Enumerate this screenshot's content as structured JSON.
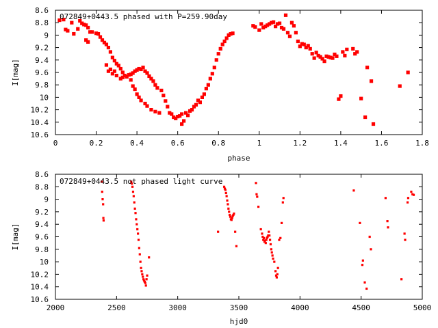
{
  "chart_data": [
    {
      "type": "scatter",
      "title": "072849+0443.5 phased with P=259.90day",
      "xlabel": "phase",
      "ylabel": "I[mag]",
      "xlim": [
        0,
        1.8
      ],
      "ylim": [
        10.6,
        8.6
      ],
      "y_inverted": true,
      "xticks": [
        "0",
        "0.2",
        "0.4",
        "0.6",
        "0.8",
        "1",
        "1.2",
        "1.4",
        "1.6",
        "1.8"
      ],
      "yticks": [
        "8.6",
        "8.8",
        "9",
        "9.2",
        "9.4",
        "9.6",
        "9.8",
        "10",
        "10.2",
        "10.4",
        "10.6"
      ],
      "series_color": "#ff0000",
      "grid": false,
      "points": [
        [
          0.02,
          8.76
        ],
        [
          0.04,
          8.75
        ],
        [
          0.05,
          8.91
        ],
        [
          0.06,
          8.93
        ],
        [
          0.08,
          8.8
        ],
        [
          0.09,
          8.98
        ],
        [
          0.11,
          8.9
        ],
        [
          0.12,
          8.77
        ],
        [
          0.13,
          8.81
        ],
        [
          0.14,
          8.83
        ],
        [
          0.15,
          8.84
        ],
        [
          0.15,
          9.08
        ],
        [
          0.16,
          8.88
        ],
        [
          0.16,
          9.11
        ],
        [
          0.17,
          8.95
        ],
        [
          0.18,
          8.95
        ],
        [
          0.2,
          8.97
        ],
        [
          0.21,
          8.98
        ],
        [
          0.22,
          9.03
        ],
        [
          0.23,
          9.08
        ],
        [
          0.24,
          9.12
        ],
        [
          0.25,
          9.15
        ],
        [
          0.25,
          9.48
        ],
        [
          0.26,
          9.2
        ],
        [
          0.26,
          9.58
        ],
        [
          0.27,
          9.27
        ],
        [
          0.27,
          9.55
        ],
        [
          0.28,
          9.36
        ],
        [
          0.28,
          9.62
        ],
        [
          0.29,
          9.41
        ],
        [
          0.29,
          9.58
        ],
        [
          0.3,
          9.46
        ],
        [
          0.3,
          9.65
        ],
        [
          0.31,
          9.49
        ],
        [
          0.32,
          9.54
        ],
        [
          0.32,
          9.7
        ],
        [
          0.33,
          9.6
        ],
        [
          0.33,
          9.68
        ],
        [
          0.34,
          9.65
        ],
        [
          0.35,
          9.67
        ],
        [
          0.36,
          9.64
        ],
        [
          0.37,
          9.63
        ],
        [
          0.37,
          9.72
        ],
        [
          0.38,
          9.61
        ],
        [
          0.38,
          9.82
        ],
        [
          0.39,
          9.58
        ],
        [
          0.39,
          9.87
        ],
        [
          0.4,
          9.56
        ],
        [
          0.4,
          9.95
        ],
        [
          0.41,
          9.54
        ],
        [
          0.41,
          10.0
        ],
        [
          0.42,
          9.55
        ],
        [
          0.42,
          10.05
        ],
        [
          0.43,
          9.52
        ],
        [
          0.44,
          9.58
        ],
        [
          0.44,
          10.1
        ],
        [
          0.45,
          9.61
        ],
        [
          0.45,
          10.14
        ],
        [
          0.46,
          9.66
        ],
        [
          0.47,
          9.7
        ],
        [
          0.47,
          10.2
        ],
        [
          0.48,
          9.74
        ],
        [
          0.49,
          9.8
        ],
        [
          0.49,
          10.23
        ],
        [
          0.5,
          9.85
        ],
        [
          0.51,
          10.25
        ],
        [
          0.52,
          9.89
        ],
        [
          0.53,
          9.97
        ],
        [
          0.54,
          10.06
        ],
        [
          0.55,
          10.15
        ],
        [
          0.56,
          10.25
        ],
        [
          0.57,
          10.27
        ],
        [
          0.58,
          10.32
        ],
        [
          0.59,
          10.34
        ],
        [
          0.6,
          10.31
        ],
        [
          0.61,
          10.3
        ],
        [
          0.62,
          10.43
        ],
        [
          0.62,
          10.27
        ],
        [
          0.63,
          10.38
        ],
        [
          0.64,
          10.25
        ],
        [
          0.65,
          10.29
        ],
        [
          0.66,
          10.22
        ],
        [
          0.67,
          10.2
        ],
        [
          0.68,
          10.15
        ],
        [
          0.69,
          10.12
        ],
        [
          0.7,
          10.05
        ],
        [
          0.71,
          10.08
        ],
        [
          0.72,
          10.0
        ],
        [
          0.73,
          9.95
        ],
        [
          0.74,
          9.86
        ],
        [
          0.75,
          9.8
        ],
        [
          0.76,
          9.7
        ],
        [
          0.77,
          9.62
        ],
        [
          0.78,
          9.52
        ],
        [
          0.79,
          9.4
        ],
        [
          0.8,
          9.3
        ],
        [
          0.81,
          9.22
        ],
        [
          0.82,
          9.15
        ],
        [
          0.83,
          9.1
        ],
        [
          0.84,
          9.05
        ],
        [
          0.85,
          9.0
        ],
        [
          0.86,
          8.98
        ],
        [
          0.87,
          8.97
        ],
        [
          0.97,
          8.85
        ],
        [
          0.98,
          8.87
        ],
        [
          1.0,
          8.92
        ],
        [
          1.01,
          8.82
        ],
        [
          1.02,
          8.88
        ],
        [
          1.03,
          8.86
        ],
        [
          1.04,
          8.84
        ],
        [
          1.05,
          8.82
        ],
        [
          1.06,
          8.8
        ],
        [
          1.07,
          8.79
        ],
        [
          1.08,
          8.86
        ],
        [
          1.09,
          8.82
        ],
        [
          1.1,
          8.81
        ],
        [
          1.11,
          8.88
        ],
        [
          1.12,
          8.9
        ],
        [
          1.13,
          8.68
        ],
        [
          1.14,
          8.96
        ],
        [
          1.15,
          9.02
        ],
        [
          1.16,
          8.8
        ],
        [
          1.17,
          8.85
        ],
        [
          1.18,
          8.96
        ],
        [
          1.19,
          9.1
        ],
        [
          1.2,
          9.18
        ],
        [
          1.21,
          9.14
        ],
        [
          1.22,
          9.15
        ],
        [
          1.23,
          9.2
        ],
        [
          1.24,
          9.17
        ],
        [
          1.25,
          9.22
        ],
        [
          1.26,
          9.3
        ],
        [
          1.27,
          9.37
        ],
        [
          1.28,
          9.28
        ],
        [
          1.29,
          9.33
        ],
        [
          1.3,
          9.35
        ],
        [
          1.31,
          9.38
        ],
        [
          1.32,
          9.42
        ],
        [
          1.33,
          9.34
        ],
        [
          1.34,
          9.35
        ],
        [
          1.35,
          9.36
        ],
        [
          1.36,
          9.37
        ],
        [
          1.37,
          9.31
        ],
        [
          1.38,
          9.34
        ],
        [
          1.39,
          10.03
        ],
        [
          1.4,
          9.98
        ],
        [
          1.41,
          9.27
        ],
        [
          1.42,
          9.33
        ],
        [
          1.43,
          9.23
        ],
        [
          1.46,
          9.22
        ],
        [
          1.47,
          9.3
        ],
        [
          1.48,
          9.27
        ],
        [
          1.5,
          10.02
        ],
        [
          1.52,
          10.32
        ],
        [
          1.53,
          9.52
        ],
        [
          1.55,
          9.74
        ],
        [
          1.56,
          10.43
        ],
        [
          1.69,
          9.82
        ],
        [
          1.73,
          9.6
        ]
      ]
    },
    {
      "type": "scatter",
      "title": "072849+0443.5 not phased light curve",
      "xlabel": "hjd0",
      "ylabel": "I[mag]",
      "xlim": [
        2000,
        5000
      ],
      "ylim": [
        10.6,
        8.6
      ],
      "y_inverted": true,
      "xticks": [
        "2000",
        "2500",
        "3000",
        "3500",
        "4000",
        "4500",
        "5000"
      ],
      "yticks": [
        "8.6",
        "8.8",
        "9",
        "9.2",
        "9.4",
        "9.6",
        "9.8",
        "10",
        "10.2",
        "10.4",
        "10.6"
      ],
      "series_color": "#ff0000",
      "grid": false,
      "points": [
        [
          2378,
          8.72
        ],
        [
          2382,
          8.88
        ],
        [
          2386,
          9.0
        ],
        [
          2390,
          9.08
        ],
        [
          2392,
          9.3
        ],
        [
          2394,
          9.34
        ],
        [
          2620,
          8.72
        ],
        [
          2625,
          8.75
        ],
        [
          2630,
          8.8
        ],
        [
          2635,
          8.88
        ],
        [
          2640,
          8.95
        ],
        [
          2645,
          9.05
        ],
        [
          2650,
          9.15
        ],
        [
          2655,
          9.22
        ],
        [
          2660,
          9.32
        ],
        [
          2665,
          9.4
        ],
        [
          2670,
          9.48
        ],
        [
          2675,
          9.55
        ],
        [
          2680,
          9.65
        ],
        [
          2685,
          9.78
        ],
        [
          2690,
          9.88
        ],
        [
          2695,
          10.0
        ],
        [
          2700,
          10.1
        ],
        [
          2705,
          10.15
        ],
        [
          2710,
          10.2
        ],
        [
          2715,
          10.24
        ],
        [
          2720,
          10.28
        ],
        [
          2725,
          10.3
        ],
        [
          2730,
          10.32
        ],
        [
          2735,
          10.34
        ],
        [
          2740,
          10.38
        ],
        [
          2745,
          10.28
        ],
        [
          2750,
          10.22
        ],
        [
          2765,
          9.93
        ],
        [
          3330,
          9.52
        ],
        [
          3380,
          8.8
        ],
        [
          3385,
          8.83
        ],
        [
          3390,
          8.85
        ],
        [
          3395,
          8.9
        ],
        [
          3400,
          8.95
        ],
        [
          3405,
          9.02
        ],
        [
          3410,
          9.08
        ],
        [
          3415,
          9.15
        ],
        [
          3420,
          9.2
        ],
        [
          3425,
          9.25
        ],
        [
          3430,
          9.28
        ],
        [
          3435,
          9.32
        ],
        [
          3440,
          9.33
        ],
        [
          3445,
          9.3
        ],
        [
          3450,
          9.27
        ],
        [
          3455,
          9.25
        ],
        [
          3460,
          9.23
        ],
        [
          3470,
          9.52
        ],
        [
          3480,
          9.75
        ],
        [
          3640,
          8.74
        ],
        [
          3645,
          8.92
        ],
        [
          3650,
          8.96
        ],
        [
          3660,
          9.12
        ],
        [
          3680,
          9.48
        ],
        [
          3690,
          9.55
        ],
        [
          3695,
          9.6
        ],
        [
          3700,
          9.65
        ],
        [
          3705,
          9.62
        ],
        [
          3710,
          9.68
        ],
        [
          3715,
          9.66
        ],
        [
          3720,
          9.7
        ],
        [
          3725,
          9.65
        ],
        [
          3730,
          9.62
        ],
        [
          3735,
          9.6
        ],
        [
          3740,
          9.58
        ],
        [
          3745,
          9.52
        ],
        [
          3750,
          9.58
        ],
        [
          3755,
          9.65
        ],
        [
          3760,
          9.72
        ],
        [
          3765,
          9.8
        ],
        [
          3770,
          9.85
        ],
        [
          3775,
          9.9
        ],
        [
          3780,
          9.95
        ],
        [
          3790,
          10.0
        ],
        [
          3800,
          10.15
        ],
        [
          3805,
          10.22
        ],
        [
          3810,
          10.25
        ],
        [
          3815,
          10.2
        ],
        [
          3820,
          10.1
        ],
        [
          3830,
          9.65
        ],
        [
          3840,
          9.62
        ],
        [
          3850,
          9.38
        ],
        [
          3860,
          9.05
        ],
        [
          3865,
          8.98
        ],
        [
          4440,
          8.86
        ],
        [
          4490,
          9.38
        ],
        [
          4510,
          10.05
        ],
        [
          4515,
          9.98
        ],
        [
          4530,
          10.33
        ],
        [
          4545,
          10.43
        ],
        [
          4570,
          9.6
        ],
        [
          4580,
          9.8
        ],
        [
          4700,
          8.98
        ],
        [
          4715,
          9.35
        ],
        [
          4720,
          9.45
        ],
        [
          4830,
          10.28
        ],
        [
          4855,
          9.55
        ],
        [
          4860,
          9.65
        ],
        [
          4880,
          9.05
        ],
        [
          4885,
          8.98
        ],
        [
          4910,
          8.88
        ],
        [
          4920,
          8.92
        ],
        [
          4930,
          8.93
        ]
      ]
    }
  ]
}
